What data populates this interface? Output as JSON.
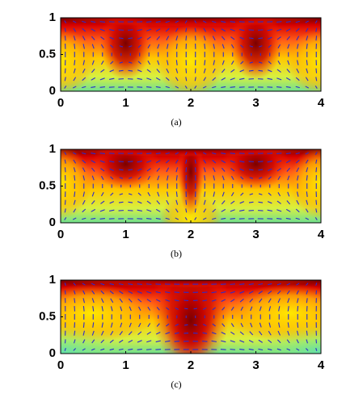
{
  "chart_data": [
    {
      "type": "quiver",
      "caption": "(a)",
      "xlim": [
        0,
        4
      ],
      "ylim": [
        0,
        1
      ],
      "xticks": [
        0,
        1,
        2,
        3,
        4
      ],
      "yticks": [
        0,
        0.5,
        1
      ]
    },
    {
      "type": "quiver",
      "caption": "(b)",
      "xlim": [
        0,
        4
      ],
      "ylim": [
        0,
        1
      ],
      "xticks": [
        0,
        1,
        2,
        3,
        4
      ],
      "yticks": [
        0,
        0.5,
        1
      ]
    },
    {
      "type": "quiver",
      "caption": "(c)",
      "xlim": [
        0,
        4
      ],
      "ylim": [
        0,
        1
      ],
      "xticks": [
        0,
        1,
        2,
        3,
        4
      ],
      "yticks": [
        0,
        0.5,
        1
      ]
    }
  ]
}
